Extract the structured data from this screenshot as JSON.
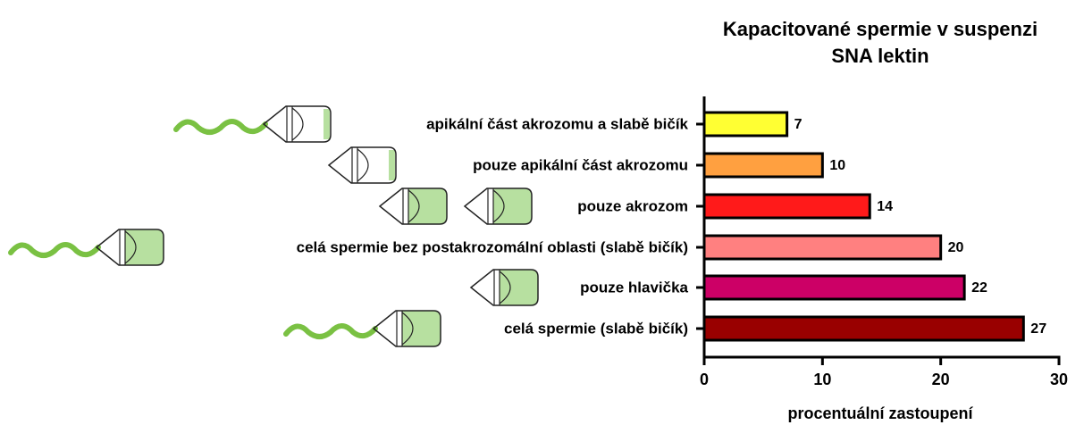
{
  "chart_data": {
    "type": "bar",
    "orientation": "horizontal",
    "title": [
      "Kapacitované spermie v suspenzi",
      "SNA lektin"
    ],
    "x_label": "procentuální zastoupení",
    "categories": [
      "apikální část akrozomu a slabě bičík",
      "pouze apikální část akrozomu",
      "pouze akrozom",
      "celá spermie bez postakrozomální oblasti (slabě bičík)",
      "pouze hlavička",
      "celá spermie (slabě bičík)"
    ],
    "values": [
      7,
      10,
      14,
      20,
      22,
      27
    ],
    "colors": [
      "#ffff33",
      "#ffa040",
      "#ff1a1a",
      "#ff8080",
      "#cc0066",
      "#990000"
    ],
    "xlim": [
      0,
      30
    ],
    "xticks": [
      0,
      10,
      20,
      30
    ]
  }
}
